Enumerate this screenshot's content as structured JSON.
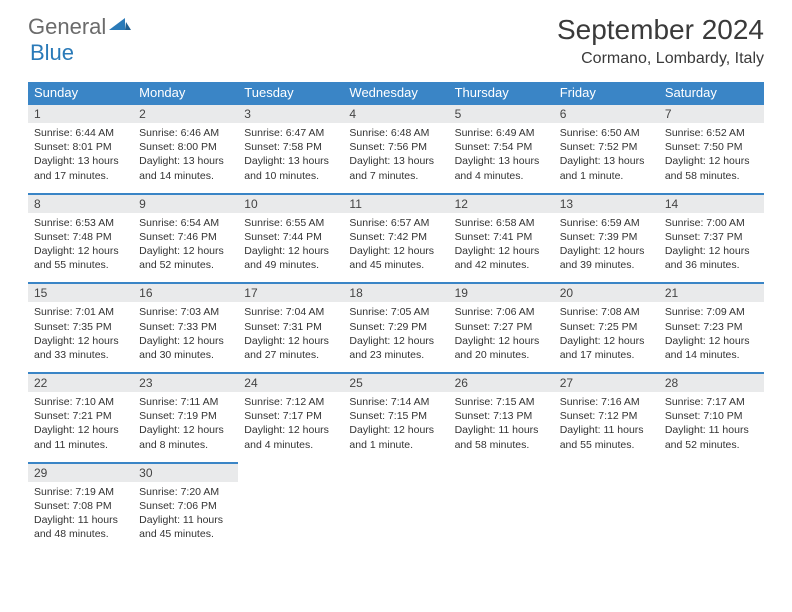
{
  "logo": {
    "general": "General",
    "blue": "Blue"
  },
  "title": "September 2024",
  "location": "Cormano, Lombardy, Italy",
  "colors": {
    "header_bg": "#3a85c6",
    "daynum_bg": "#e9eaeb",
    "text": "#333333",
    "logo_gray": "#6b6b6b",
    "logo_blue": "#2a7ab8"
  },
  "weekdays": [
    "Sunday",
    "Monday",
    "Tuesday",
    "Wednesday",
    "Thursday",
    "Friday",
    "Saturday"
  ],
  "days": [
    {
      "n": "1",
      "sr": "6:44 AM",
      "ss": "8:01 PM",
      "dl": "13 hours and 17 minutes."
    },
    {
      "n": "2",
      "sr": "6:46 AM",
      "ss": "8:00 PM",
      "dl": "13 hours and 14 minutes."
    },
    {
      "n": "3",
      "sr": "6:47 AM",
      "ss": "7:58 PM",
      "dl": "13 hours and 10 minutes."
    },
    {
      "n": "4",
      "sr": "6:48 AM",
      "ss": "7:56 PM",
      "dl": "13 hours and 7 minutes."
    },
    {
      "n": "5",
      "sr": "6:49 AM",
      "ss": "7:54 PM",
      "dl": "13 hours and 4 minutes."
    },
    {
      "n": "6",
      "sr": "6:50 AM",
      "ss": "7:52 PM",
      "dl": "13 hours and 1 minute."
    },
    {
      "n": "7",
      "sr": "6:52 AM",
      "ss": "7:50 PM",
      "dl": "12 hours and 58 minutes."
    },
    {
      "n": "8",
      "sr": "6:53 AM",
      "ss": "7:48 PM",
      "dl": "12 hours and 55 minutes."
    },
    {
      "n": "9",
      "sr": "6:54 AM",
      "ss": "7:46 PM",
      "dl": "12 hours and 52 minutes."
    },
    {
      "n": "10",
      "sr": "6:55 AM",
      "ss": "7:44 PM",
      "dl": "12 hours and 49 minutes."
    },
    {
      "n": "11",
      "sr": "6:57 AM",
      "ss": "7:42 PM",
      "dl": "12 hours and 45 minutes."
    },
    {
      "n": "12",
      "sr": "6:58 AM",
      "ss": "7:41 PM",
      "dl": "12 hours and 42 minutes."
    },
    {
      "n": "13",
      "sr": "6:59 AM",
      "ss": "7:39 PM",
      "dl": "12 hours and 39 minutes."
    },
    {
      "n": "14",
      "sr": "7:00 AM",
      "ss": "7:37 PM",
      "dl": "12 hours and 36 minutes."
    },
    {
      "n": "15",
      "sr": "7:01 AM",
      "ss": "7:35 PM",
      "dl": "12 hours and 33 minutes."
    },
    {
      "n": "16",
      "sr": "7:03 AM",
      "ss": "7:33 PM",
      "dl": "12 hours and 30 minutes."
    },
    {
      "n": "17",
      "sr": "7:04 AM",
      "ss": "7:31 PM",
      "dl": "12 hours and 27 minutes."
    },
    {
      "n": "18",
      "sr": "7:05 AM",
      "ss": "7:29 PM",
      "dl": "12 hours and 23 minutes."
    },
    {
      "n": "19",
      "sr": "7:06 AM",
      "ss": "7:27 PM",
      "dl": "12 hours and 20 minutes."
    },
    {
      "n": "20",
      "sr": "7:08 AM",
      "ss": "7:25 PM",
      "dl": "12 hours and 17 minutes."
    },
    {
      "n": "21",
      "sr": "7:09 AM",
      "ss": "7:23 PM",
      "dl": "12 hours and 14 minutes."
    },
    {
      "n": "22",
      "sr": "7:10 AM",
      "ss": "7:21 PM",
      "dl": "12 hours and 11 minutes."
    },
    {
      "n": "23",
      "sr": "7:11 AM",
      "ss": "7:19 PM",
      "dl": "12 hours and 8 minutes."
    },
    {
      "n": "24",
      "sr": "7:12 AM",
      "ss": "7:17 PM",
      "dl": "12 hours and 4 minutes."
    },
    {
      "n": "25",
      "sr": "7:14 AM",
      "ss": "7:15 PM",
      "dl": "12 hours and 1 minute."
    },
    {
      "n": "26",
      "sr": "7:15 AM",
      "ss": "7:13 PM",
      "dl": "11 hours and 58 minutes."
    },
    {
      "n": "27",
      "sr": "7:16 AM",
      "ss": "7:12 PM",
      "dl": "11 hours and 55 minutes."
    },
    {
      "n": "28",
      "sr": "7:17 AM",
      "ss": "7:10 PM",
      "dl": "11 hours and 52 minutes."
    },
    {
      "n": "29",
      "sr": "7:19 AM",
      "ss": "7:08 PM",
      "dl": "11 hours and 48 minutes."
    },
    {
      "n": "30",
      "sr": "7:20 AM",
      "ss": "7:06 PM",
      "dl": "11 hours and 45 minutes."
    }
  ],
  "labels": {
    "sunrise": "Sunrise: ",
    "sunset": "Sunset: ",
    "daylight": "Daylight: "
  },
  "layout": {
    "start_weekday": 0,
    "total_cells": 35
  }
}
